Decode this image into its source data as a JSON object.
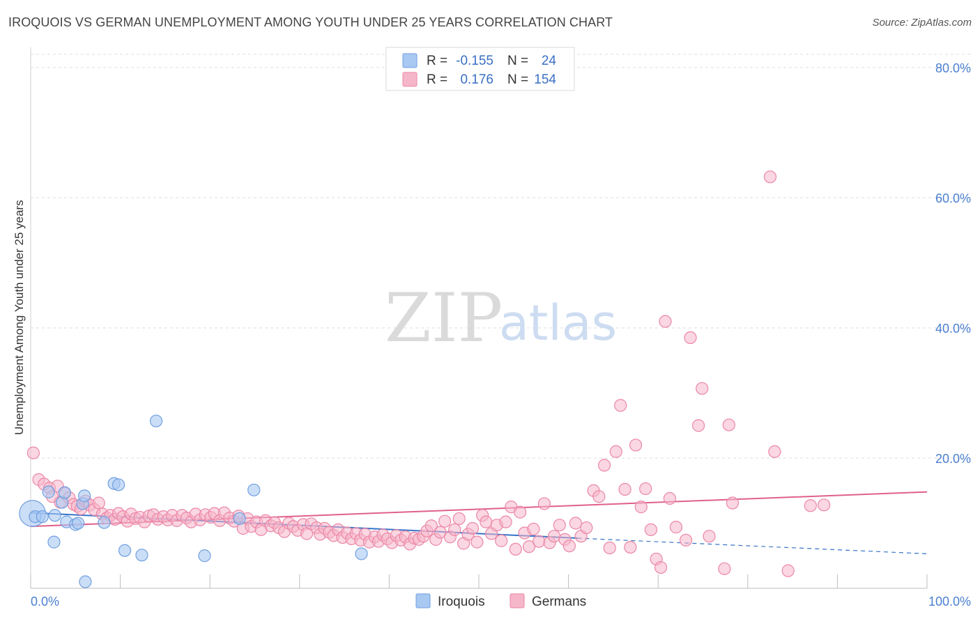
{
  "header": {
    "title": "IROQUOIS VS GERMAN UNEMPLOYMENT AMONG YOUTH UNDER 25 YEARS CORRELATION CHART",
    "source": "Source: ZipAtlas.com"
  },
  "watermark": {
    "zip": "ZIP",
    "atlas": "atlas"
  },
  "legend": {
    "rows": [
      {
        "r_label": "R =",
        "r_value": "-0.155",
        "n_label": "N =",
        "n_value": "24",
        "color": "#a9c8f2"
      },
      {
        "r_label": "R =",
        "r_value": "0.176",
        "n_label": "N =",
        "n_value": "154",
        "color": "#f6b6ca"
      }
    ]
  },
  "bottom_legend": {
    "items": [
      "Iroquois",
      "Germans"
    ]
  },
  "colors": {
    "iroquois_fill": "#a9c8f2",
    "iroquois_stroke": "#6f9fe0",
    "iroquois_line": "#3572c8",
    "germans_fill": "#f6b6ca",
    "germans_stroke": "#eb86a6",
    "germans_line": "#e0608c",
    "grid": "#dcdcdc",
    "tick_text": "#4a7fd0"
  },
  "chart_data": {
    "type": "scatter",
    "title": "IROQUOIS VS GERMAN UNEMPLOYMENT AMONG YOUTH UNDER 25 YEARS CORRELATION CHART",
    "xlabel": "",
    "ylabel": "Unemployment Among Youth under 25 years",
    "xlim": [
      0,
      100
    ],
    "ylim": [
      0,
      80
    ],
    "x_tick_labels": [
      "0.0%",
      "100.0%"
    ],
    "y_ticks": [
      20,
      40,
      60,
      80
    ],
    "y_tick_labels": [
      "20.0%",
      "40.0%",
      "60.0%",
      "80.0%"
    ],
    "grid": true,
    "legend_position": "top-center",
    "series": [
      {
        "name": "Iroquois",
        "R": -0.155,
        "N": 24,
        "points": [
          [
            0.2,
            11.5,
            2.2
          ],
          [
            0.5,
            11.0,
            1
          ],
          [
            1.3,
            11.0,
            1
          ],
          [
            2.0,
            14.8,
            1
          ],
          [
            2.6,
            7.1,
            1
          ],
          [
            2.7,
            11.2,
            1
          ],
          [
            3.5,
            13.2,
            1
          ],
          [
            3.8,
            14.7,
            1
          ],
          [
            4.0,
            10.2,
            1
          ],
          [
            5.0,
            9.8,
            1
          ],
          [
            5.3,
            10.0,
            1
          ],
          [
            5.8,
            13.0,
            1
          ],
          [
            6.0,
            14.2,
            1
          ],
          [
            6.1,
            1.0,
            1
          ],
          [
            8.2,
            10.1,
            1
          ],
          [
            9.3,
            16.1,
            1
          ],
          [
            9.8,
            15.9,
            1
          ],
          [
            10.5,
            5.8,
            1
          ],
          [
            12.4,
            5.1,
            1
          ],
          [
            14.0,
            25.7,
            1
          ],
          [
            19.4,
            5.0,
            1
          ],
          [
            23.3,
            10.7,
            1
          ],
          [
            24.9,
            15.1,
            1
          ],
          [
            36.9,
            5.3,
            1
          ]
        ],
        "trend": {
          "x": [
            0,
            61
          ],
          "y": [
            11.6,
            7.7
          ],
          "dashed_to": [
            100,
            5.3
          ]
        }
      },
      {
        "name": "Germans",
        "R": 0.176,
        "N": 154,
        "points": [
          [
            0.3,
            20.8
          ],
          [
            0.9,
            16.7
          ],
          [
            1.5,
            16.0
          ],
          [
            2.1,
            15.4
          ],
          [
            2.4,
            14.1
          ],
          [
            3.0,
            15.7
          ],
          [
            3.3,
            13.2
          ],
          [
            3.8,
            14.6
          ],
          [
            4.3,
            13.9
          ],
          [
            4.8,
            12.9
          ],
          [
            5.2,
            12.6
          ],
          [
            5.6,
            12.2
          ],
          [
            6.1,
            13.4
          ],
          [
            6.6,
            12.8
          ],
          [
            7.1,
            12.1
          ],
          [
            7.6,
            13.1
          ],
          [
            8.0,
            11.4
          ],
          [
            8.5,
            10.8
          ],
          [
            8.9,
            11.2
          ],
          [
            9.4,
            10.6
          ],
          [
            9.8,
            11.5
          ],
          [
            10.3,
            11.0
          ],
          [
            10.8,
            10.3
          ],
          [
            11.2,
            11.4
          ],
          [
            11.7,
            10.7
          ],
          [
            12.2,
            10.9
          ],
          [
            12.7,
            10.2
          ],
          [
            13.2,
            11.1
          ],
          [
            13.7,
            11.3
          ],
          [
            14.2,
            10.6
          ],
          [
            14.8,
            11.0
          ],
          [
            15.3,
            10.5
          ],
          [
            15.8,
            11.2
          ],
          [
            16.3,
            10.4
          ],
          [
            16.9,
            11.2
          ],
          [
            17.4,
            10.8
          ],
          [
            17.9,
            10.2
          ],
          [
            18.4,
            11.4
          ],
          [
            18.9,
            10.5
          ],
          [
            19.5,
            11.3
          ],
          [
            20.1,
            10.9
          ],
          [
            20.5,
            11.5
          ],
          [
            21.1,
            10.4
          ],
          [
            21.6,
            11.6
          ],
          [
            22.2,
            10.8
          ],
          [
            22.7,
            10.3
          ],
          [
            23.2,
            11.1
          ],
          [
            23.7,
            9.2
          ],
          [
            24.2,
            10.7
          ],
          [
            24.6,
            9.5
          ],
          [
            25.2,
            10.2
          ],
          [
            25.7,
            9.0
          ],
          [
            26.2,
            10.4
          ],
          [
            26.8,
            9.6
          ],
          [
            27.2,
            10.1
          ],
          [
            27.7,
            9.3
          ],
          [
            28.3,
            8.7
          ],
          [
            28.8,
            10.0
          ],
          [
            29.3,
            9.5
          ],
          [
            29.8,
            8.9
          ],
          [
            30.4,
            9.8
          ],
          [
            30.8,
            8.4
          ],
          [
            31.3,
            9.9
          ],
          [
            31.9,
            9.3
          ],
          [
            32.3,
            8.3
          ],
          [
            32.8,
            9.2
          ],
          [
            33.3,
            8.6
          ],
          [
            33.8,
            8.1
          ],
          [
            34.3,
            9.0
          ],
          [
            34.8,
            7.8
          ],
          [
            35.3,
            8.5
          ],
          [
            35.8,
            7.6
          ],
          [
            36.3,
            8.4
          ],
          [
            36.8,
            7.4
          ],
          [
            37.3,
            8.3
          ],
          [
            37.8,
            7.1
          ],
          [
            38.4,
            7.9
          ],
          [
            38.8,
            7.2
          ],
          [
            39.3,
            8.2
          ],
          [
            39.8,
            7.6
          ],
          [
            40.3,
            7.0
          ],
          [
            40.8,
            8.1
          ],
          [
            41.3,
            7.4
          ],
          [
            41.8,
            7.9
          ],
          [
            42.3,
            6.8
          ],
          [
            42.8,
            7.7
          ],
          [
            43.3,
            7.5
          ],
          [
            43.8,
            8.0
          ],
          [
            44.2,
            8.8
          ],
          [
            44.7,
            9.6
          ],
          [
            45.2,
            7.5
          ],
          [
            45.7,
            8.6
          ],
          [
            46.2,
            10.3
          ],
          [
            46.8,
            7.9
          ],
          [
            47.3,
            9.0
          ],
          [
            47.8,
            10.7
          ],
          [
            48.3,
            6.9
          ],
          [
            48.8,
            8.3
          ],
          [
            49.3,
            9.2
          ],
          [
            49.8,
            7.1
          ],
          [
            50.4,
            11.2
          ],
          [
            50.8,
            10.2
          ],
          [
            51.4,
            8.4
          ],
          [
            52.0,
            9.7
          ],
          [
            52.5,
            7.3
          ],
          [
            53.0,
            10.2
          ],
          [
            53.6,
            12.5
          ],
          [
            54.1,
            6.0
          ],
          [
            54.6,
            11.7
          ],
          [
            55.1,
            8.5
          ],
          [
            55.6,
            6.4
          ],
          [
            56.1,
            9.1
          ],
          [
            56.7,
            7.2
          ],
          [
            57.3,
            13.0
          ],
          [
            57.9,
            7.0
          ],
          [
            58.4,
            8.0
          ],
          [
            59.0,
            9.7
          ],
          [
            59.6,
            7.5
          ],
          [
            60.1,
            6.5
          ],
          [
            60.8,
            10.0
          ],
          [
            61.4,
            8.0
          ],
          [
            62.0,
            9.3
          ],
          [
            62.8,
            15.0
          ],
          [
            63.4,
            14.1
          ],
          [
            64.0,
            18.9
          ],
          [
            64.6,
            6.2
          ],
          [
            65.3,
            21.0
          ],
          [
            65.8,
            28.1
          ],
          [
            66.3,
            15.2
          ],
          [
            66.9,
            6.3
          ],
          [
            67.5,
            22.0
          ],
          [
            68.1,
            12.5
          ],
          [
            68.6,
            15.3
          ],
          [
            69.2,
            9.0
          ],
          [
            69.8,
            4.5
          ],
          [
            70.3,
            3.2
          ],
          [
            70.8,
            41.0
          ],
          [
            71.3,
            13.8
          ],
          [
            72.0,
            9.4
          ],
          [
            73.1,
            7.4
          ],
          [
            73.6,
            38.5
          ],
          [
            74.5,
            25.0
          ],
          [
            74.9,
            30.7
          ],
          [
            75.7,
            8.0
          ],
          [
            77.4,
            3.0
          ],
          [
            77.9,
            25.1
          ],
          [
            78.3,
            13.1
          ],
          [
            82.5,
            63.2
          ],
          [
            83.0,
            21.0
          ],
          [
            84.5,
            2.7
          ],
          [
            87.0,
            12.7
          ],
          [
            88.5,
            12.8
          ]
        ],
        "trend": {
          "x": [
            0,
            100
          ],
          "y": [
            9.5,
            14.8
          ]
        }
      }
    ]
  }
}
